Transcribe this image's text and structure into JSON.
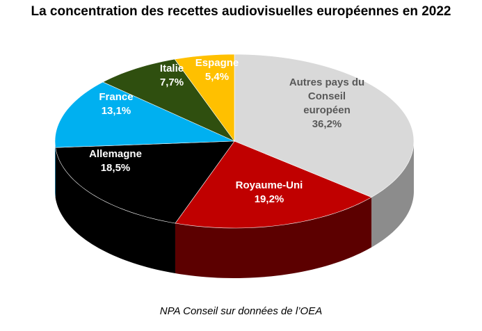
{
  "chart_data": {
    "type": "pie",
    "title": "La concentration des recettes audiovisuelles européennes en 2022",
    "source": "NPA Conseil sur données de l’OEA",
    "slices": [
      {
        "label": "Autres pays du Conseil européen",
        "lines": [
          "Autres pays du",
          "Conseil",
          "européen"
        ],
        "value": 36.2,
        "value_label": "36,2%",
        "color": "#d9d9d9",
        "side_color": "#8c8c8c",
        "text_color": "#595959"
      },
      {
        "label": "Royaume-Uni",
        "lines": [
          "Royaume-Uni"
        ],
        "value": 19.2,
        "value_label": "19,2%",
        "color": "#c00000",
        "side_color": "#5c0000",
        "text_color": "#ffffff"
      },
      {
        "label": "Allemagne",
        "lines": [
          "Allemagne"
        ],
        "value": 18.5,
        "value_label": "18,5%",
        "color": "#000000",
        "side_color": "#000000",
        "text_color": "#ffffff"
      },
      {
        "label": "France",
        "lines": [
          "France"
        ],
        "value": 13.1,
        "value_label": "13,1%",
        "color": "#00b0f0",
        "side_color": "#0070a0",
        "text_color": "#ffffff"
      },
      {
        "label": "Italie",
        "lines": [
          "Italie"
        ],
        "value": 7.7,
        "value_label": "7,7%",
        "color": "#2f4f0f",
        "side_color": "#1a2e08",
        "text_color": "#ffffff"
      },
      {
        "label": "Espagne",
        "lines": [
          "Espagne"
        ],
        "value": 5.4,
        "value_label": "5,4%",
        "color": "#ffc000",
        "side_color": "#b38600",
        "text_color": "#ffffff"
      }
    ]
  }
}
